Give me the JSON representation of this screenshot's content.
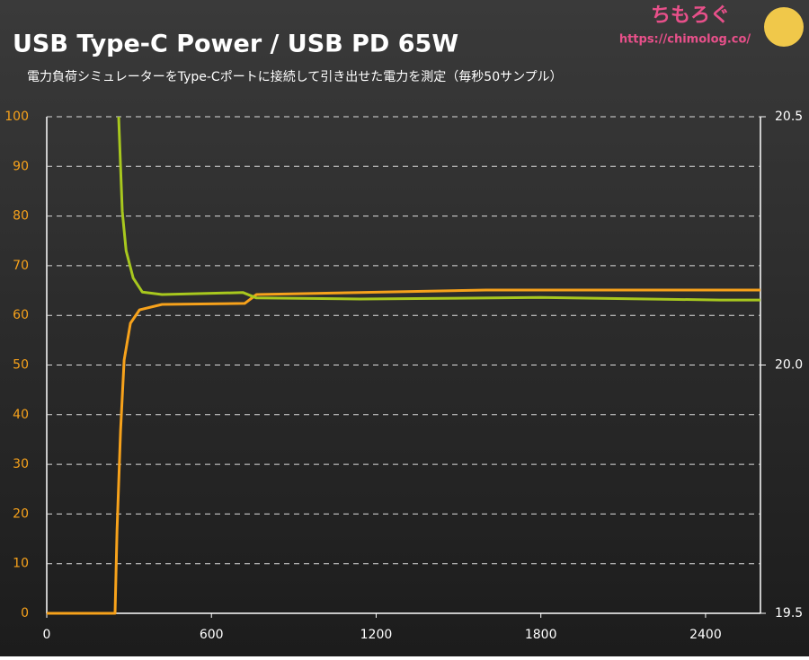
{
  "chart_data": {
    "type": "line",
    "title": "USB Type-C Power / USB PD 65W",
    "subtitle": "電力負荷シミュレーターをType-Cポートに接続して引き出せた電力を測定（毎秒50サンプル）",
    "logo": "ちもろぐ",
    "url": "https://chimolog.co/",
    "series": [
      {
        "color": "#f7a21b",
        "x": [
          0,
          249,
          256,
          269,
          282,
          305,
          338,
          420,
          721,
          764,
          1141,
          1600,
          2600
        ],
        "values": [
          0,
          0,
          16.8,
          36.7,
          51,
          58.4,
          61.1,
          62.2,
          62.4,
          64.2,
          64.6,
          65.1,
          65.1
        ]
      },
      {
        "color": "#a8c81e",
        "axis": "y2",
        "x": [
          262,
          275,
          289,
          315,
          348,
          420,
          715,
          764,
          1141,
          1797,
          2452,
          2600
        ],
        "values": [
          20.5,
          20.31,
          20.23,
          20.175,
          20.147,
          20.142,
          20.146,
          20.135,
          20.133,
          20.136,
          20.131,
          20.131
        ]
      }
    ],
    "xlim": [
      0,
      2600
    ],
    "xticks": [
      0,
      600,
      1200,
      1800,
      2400
    ],
    "ylim": [
      0,
      100
    ],
    "yticks": [
      0,
      10,
      20,
      30,
      40,
      50,
      60,
      70,
      80,
      90,
      100
    ],
    "y2lim": [
      19.5,
      20.5
    ],
    "y2ticks": [
      19.5,
      {
        "value": 20,
        "label": "20.0"
      },
      20.5
    ],
    "grid": true
  }
}
